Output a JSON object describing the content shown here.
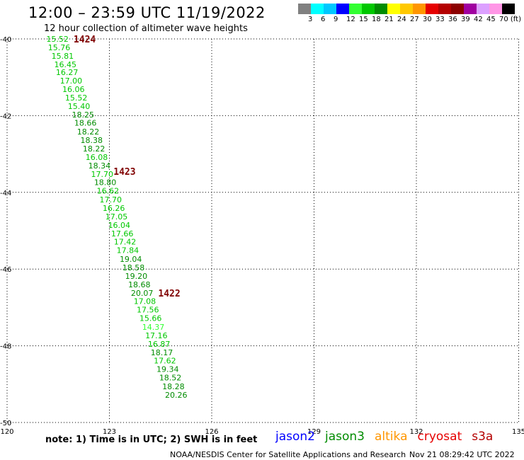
{
  "header": {
    "title": "12:00 – 23:59 UTC 11/19/2022",
    "subtitle": "12 hour collection of altimeter wave heights"
  },
  "legend": {
    "colors": [
      "#808080",
      "#00ffff",
      "#00c8ff",
      "#0000ff",
      "#32ff32",
      "#00c800",
      "#008c00",
      "#ffff00",
      "#ffc800",
      "#ff9600",
      "#e60000",
      "#b40000",
      "#8c0000",
      "#a000a0",
      "#dca0ff",
      "#ff96e6",
      "#000000"
    ],
    "labels": [
      "3",
      "6",
      "9",
      "12",
      "15",
      "18",
      "21",
      "24",
      "27",
      "30",
      "33",
      "36",
      "39",
      "42",
      "45",
      "70 (ft)"
    ]
  },
  "axes": {
    "lat_labels": [
      "-40",
      "-42",
      "-44",
      "-46",
      "-48",
      "-50"
    ],
    "lon_labels": [
      "120",
      "123",
      "126",
      "129",
      "132",
      "135"
    ]
  },
  "swh_colors": {
    "dark": "#008c00",
    "medium": "#00c800",
    "light": "#32ff32"
  },
  "observations": [
    {
      "value": "15.52",
      "lon": 121.15,
      "lat": -40.0,
      "color": "medium"
    },
    {
      "value": "15.76",
      "lon": 121.2,
      "lat": -40.22,
      "color": "medium"
    },
    {
      "value": "15.81",
      "lon": 121.3,
      "lat": -40.44,
      "color": "medium"
    },
    {
      "value": "16.45",
      "lon": 121.38,
      "lat": -40.66,
      "color": "medium"
    },
    {
      "value": "16.27",
      "lon": 121.43,
      "lat": -40.87,
      "color": "medium"
    },
    {
      "value": "17.00",
      "lon": 121.55,
      "lat": -41.09,
      "color": "medium"
    },
    {
      "value": "16.06",
      "lon": 121.62,
      "lat": -41.31,
      "color": "medium"
    },
    {
      "value": "15.52",
      "lon": 121.7,
      "lat": -41.53,
      "color": "medium"
    },
    {
      "value": "15.40",
      "lon": 121.78,
      "lat": -41.75,
      "color": "medium"
    },
    {
      "value": "18.25",
      "lon": 121.9,
      "lat": -41.97,
      "color": "dark"
    },
    {
      "value": "18.66",
      "lon": 121.97,
      "lat": -42.19,
      "color": "dark"
    },
    {
      "value": "18.22",
      "lon": 122.05,
      "lat": -42.42,
      "color": "dark"
    },
    {
      "value": "18.38",
      "lon": 122.15,
      "lat": -42.64,
      "color": "dark"
    },
    {
      "value": "18.22",
      "lon": 122.22,
      "lat": -42.86,
      "color": "dark"
    },
    {
      "value": "16.08",
      "lon": 122.3,
      "lat": -43.08,
      "color": "medium"
    },
    {
      "value": "18.34",
      "lon": 122.38,
      "lat": -43.3,
      "color": "dark"
    },
    {
      "value": "17.70",
      "lon": 122.46,
      "lat": -43.52,
      "color": "medium"
    },
    {
      "value": "18.80",
      "lon": 122.55,
      "lat": -43.74,
      "color": "dark"
    },
    {
      "value": "16.62",
      "lon": 122.63,
      "lat": -43.96,
      "color": "medium"
    },
    {
      "value": "17.70",
      "lon": 122.71,
      "lat": -44.19,
      "color": "medium"
    },
    {
      "value": "16.26",
      "lon": 122.8,
      "lat": -44.41,
      "color": "medium"
    },
    {
      "value": "17.05",
      "lon": 122.88,
      "lat": -44.63,
      "color": "medium"
    },
    {
      "value": "16.04",
      "lon": 122.96,
      "lat": -44.85,
      "color": "medium"
    },
    {
      "value": "17.66",
      "lon": 123.05,
      "lat": -45.07,
      "color": "medium"
    },
    {
      "value": "17.42",
      "lon": 123.13,
      "lat": -45.29,
      "color": "medium"
    },
    {
      "value": "17.84",
      "lon": 123.21,
      "lat": -45.51,
      "color": "medium"
    },
    {
      "value": "19.04",
      "lon": 123.3,
      "lat": -45.74,
      "color": "dark"
    },
    {
      "value": "18.58",
      "lon": 123.38,
      "lat": -45.96,
      "color": "dark"
    },
    {
      "value": "19.20",
      "lon": 123.46,
      "lat": -46.18,
      "color": "dark"
    },
    {
      "value": "18.68",
      "lon": 123.55,
      "lat": -46.4,
      "color": "dark"
    },
    {
      "value": "20.07",
      "lon": 123.63,
      "lat": -46.62,
      "color": "dark"
    },
    {
      "value": "17.08",
      "lon": 123.71,
      "lat": -46.84,
      "color": "medium"
    },
    {
      "value": "17.56",
      "lon": 123.8,
      "lat": -47.06,
      "color": "medium"
    },
    {
      "value": "15.66",
      "lon": 123.88,
      "lat": -47.28,
      "color": "medium"
    },
    {
      "value": "14.37",
      "lon": 123.96,
      "lat": -47.51,
      "color": "light"
    },
    {
      "value": "17.16",
      "lon": 124.05,
      "lat": -47.73,
      "color": "medium"
    },
    {
      "value": "16.87",
      "lon": 124.13,
      "lat": -47.95,
      "color": "medium"
    },
    {
      "value": "18.17",
      "lon": 124.21,
      "lat": -48.17,
      "color": "dark"
    },
    {
      "value": "17.62",
      "lon": 124.3,
      "lat": -48.39,
      "color": "medium"
    },
    {
      "value": "19.34",
      "lon": 124.38,
      "lat": -48.61,
      "color": "dark"
    },
    {
      "value": "18.52",
      "lon": 124.46,
      "lat": -48.83,
      "color": "dark"
    },
    {
      "value": "18.28",
      "lon": 124.55,
      "lat": -49.06,
      "color": "dark"
    },
    {
      "value": "20.26",
      "lon": 124.63,
      "lat": -49.28,
      "color": "dark"
    }
  ],
  "pass_times": [
    {
      "label": "1424",
      "lon": 121.95,
      "lat": -40.0
    },
    {
      "label": "1423",
      "lon": 123.12,
      "lat": -43.45
    },
    {
      "label": "1422",
      "lon": 124.43,
      "lat": -46.62
    }
  ],
  "note": "note:  1) Time is in UTC; 2) SWH is in feet",
  "satellites": [
    {
      "name": "jason2",
      "color": "#0000ff"
    },
    {
      "name": "jason3",
      "color": "#008c00"
    },
    {
      "name": "altika",
      "color": "#ff9600"
    },
    {
      "name": "cryosat",
      "color": "#e60000"
    },
    {
      "name": "s3a",
      "color": "#b40000"
    }
  ],
  "footer": {
    "credit": "NOAA/NESDIS Center for Satellite Applications and Research",
    "timestamp": "Nov 21 08:29:42 UTC 2022"
  }
}
